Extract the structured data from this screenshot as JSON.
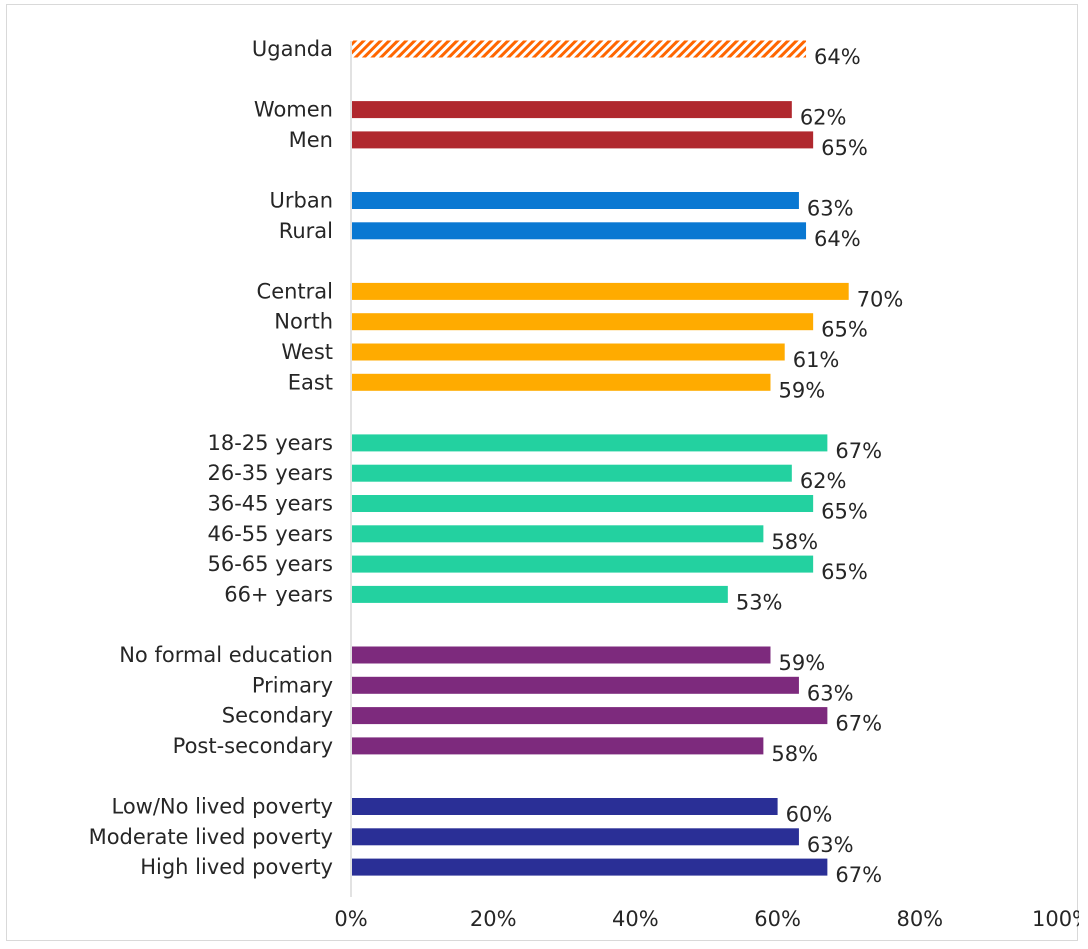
{
  "chart_data": {
    "type": "bar",
    "orientation": "horizontal",
    "title": "",
    "xlabel": "",
    "ylabel": "",
    "xlim": [
      0,
      100
    ],
    "x_ticks": [
      "0%",
      "20%",
      "40%",
      "60%",
      "80%",
      "100%"
    ],
    "grid": false,
    "legend": "none",
    "groups": [
      {
        "color": "#ff6600",
        "pattern": "diagonal-hatch",
        "bars": [
          {
            "label": "Uganda",
            "value": 64,
            "value_label": "64%"
          }
        ]
      },
      {
        "color": "#b0282e",
        "bars": [
          {
            "label": "Women",
            "value": 62,
            "value_label": "62%"
          },
          {
            "label": "Men",
            "value": 65,
            "value_label": "65%"
          }
        ]
      },
      {
        "color": "#0a78d2",
        "bars": [
          {
            "label": "Urban",
            "value": 63,
            "value_label": "63%"
          },
          {
            "label": "Rural",
            "value": 64,
            "value_label": "64%"
          }
        ]
      },
      {
        "color": "#ffab00",
        "bars": [
          {
            "label": "Central",
            "value": 70,
            "value_label": "70%"
          },
          {
            "label": "North",
            "value": 65,
            "value_label": "65%"
          },
          {
            "label": "West",
            "value": 61,
            "value_label": "61%"
          },
          {
            "label": "East",
            "value": 59,
            "value_label": "59%"
          }
        ]
      },
      {
        "color": "#23d1a0",
        "bars": [
          {
            "label": "18-25 years",
            "value": 67,
            "value_label": "67%"
          },
          {
            "label": "26-35 years",
            "value": 62,
            "value_label": "62%"
          },
          {
            "label": "36-45 years",
            "value": 65,
            "value_label": "65%"
          },
          {
            "label": "46-55 years",
            "value": 58,
            "value_label": "58%"
          },
          {
            "label": "56-65 years",
            "value": 65,
            "value_label": "65%"
          },
          {
            "label": "66+ years",
            "value": 53,
            "value_label": "53%"
          }
        ]
      },
      {
        "color": "#7d2a7d",
        "bars": [
          {
            "label": "No formal education",
            "value": 59,
            "value_label": "59%"
          },
          {
            "label": "Primary",
            "value": 63,
            "value_label": "63%"
          },
          {
            "label": "Secondary",
            "value": 67,
            "value_label": "67%"
          },
          {
            "label": "Post-secondary",
            "value": 58,
            "value_label": "58%"
          }
        ]
      },
      {
        "color": "#2a2f96",
        "bars": [
          {
            "label": "Low/No lived poverty",
            "value": 60,
            "value_label": "60%"
          },
          {
            "label": "Moderate lived poverty",
            "value": 63,
            "value_label": "63%"
          },
          {
            "label": "High lived poverty",
            "value": 67,
            "value_label": "67%"
          }
        ]
      }
    ]
  }
}
